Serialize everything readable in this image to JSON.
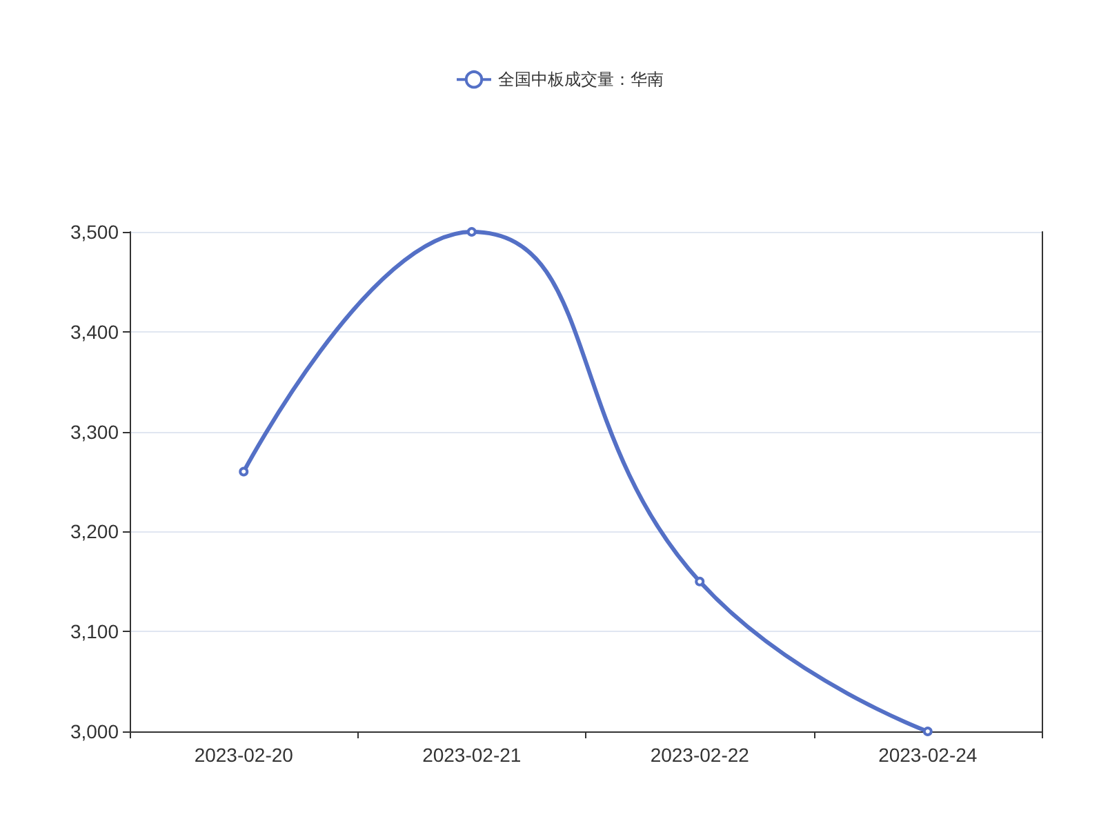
{
  "chart_data": {
    "type": "line",
    "categories": [
      "2023-02-20",
      "2023-02-21",
      "2023-02-22",
      "2023-02-24"
    ],
    "series": [
      {
        "name": "全国中板成交量：华南",
        "color": "#5470c6",
        "values": [
          3260,
          3500,
          3150,
          3000
        ]
      }
    ],
    "ylim": [
      3000,
      3500
    ],
    "yticks": [
      {
        "value": 3000,
        "label": "3,000"
      },
      {
        "value": 3100,
        "label": "3,100"
      },
      {
        "value": 3200,
        "label": "3,200"
      },
      {
        "value": 3300,
        "label": "3,300"
      },
      {
        "value": 3400,
        "label": "3,400"
      },
      {
        "value": 3500,
        "label": "3,500"
      }
    ],
    "grid": "y",
    "legend": "top",
    "marker": "circle",
    "line_style": "solid"
  }
}
